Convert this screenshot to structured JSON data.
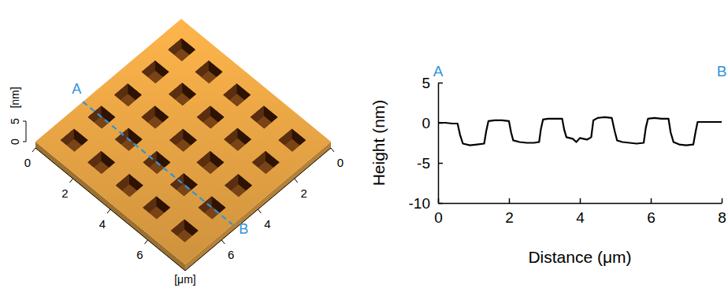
{
  "chart_data": [
    {
      "type": "surface",
      "xlabel": "[μm]",
      "zlabel": "[nm]",
      "xlim": [
        0,
        8
      ],
      "xticks": [
        0,
        2,
        4,
        6
      ],
      "ylim": [
        0,
        8
      ],
      "yticks": [
        0,
        2,
        4,
        6
      ],
      "zlim": [
        0,
        5
      ],
      "zticks": [
        0,
        5
      ],
      "color": "#d99a40",
      "hole_centers": [
        1.0,
        2.45,
        3.95,
        5.4,
        6.9
      ],
      "hole_width": 0.75,
      "hole_depth": -2.5,
      "line_style": "dashed",
      "annotations": [
        {
          "text": "A",
          "x": 0,
          "y": 5.4,
          "color": "#2f93dc"
        },
        {
          "text": "B",
          "x": 8,
          "y": 5.4,
          "color": "#2f93dc"
        }
      ]
    },
    {
      "type": "line",
      "xlabel": "Distance (μm)",
      "ylabel": "Height (nm)",
      "xlim": [
        0,
        8
      ],
      "xticks": [
        0,
        2,
        4,
        6,
        8
      ],
      "ylim": [
        -10,
        5
      ],
      "yticks": [
        -10,
        -5,
        0,
        5
      ],
      "color": "#000000",
      "x": [
        0,
        0.2,
        0.4,
        0.55,
        0.62,
        0.7,
        0.9,
        1.1,
        1.3,
        1.36,
        1.42,
        1.6,
        1.8,
        2.0,
        2.06,
        2.12,
        2.3,
        2.5,
        2.7,
        2.85,
        2.9,
        2.96,
        3.1,
        3.3,
        3.5,
        3.56,
        3.62,
        3.8,
        3.9,
        4.0,
        4.2,
        4.32,
        4.38,
        4.5,
        4.7,
        4.9,
        4.98,
        5.05,
        5.2,
        5.4,
        5.6,
        5.8,
        5.86,
        5.92,
        6.1,
        6.3,
        6.5,
        6.56,
        6.64,
        6.8,
        7.0,
        7.2,
        7.26,
        7.32,
        7.5,
        7.7,
        8.0
      ],
      "values": [
        0,
        0,
        -0.1,
        -0.1,
        -1.5,
        -2.6,
        -2.8,
        -2.7,
        -2.6,
        -1.0,
        0.2,
        0.3,
        0.3,
        0.2,
        -1.2,
        -2.2,
        -2.4,
        -2.5,
        -2.5,
        -2.4,
        -0.8,
        0.4,
        0.5,
        0.5,
        0.5,
        -0.9,
        -1.8,
        -2.0,
        -2.4,
        -1.9,
        -2.1,
        -1.8,
        0.3,
        0.6,
        0.7,
        0.6,
        -1.0,
        -2.2,
        -2.4,
        -2.5,
        -2.6,
        -2.5,
        -0.6,
        0.5,
        0.6,
        0.5,
        0.5,
        -1.2,
        -2.4,
        -2.7,
        -2.8,
        -2.7,
        -1.2,
        0.1,
        0.1,
        0.1,
        0.1
      ],
      "annotations": [
        {
          "text": "A",
          "x": 0,
          "color": "#2f93dc"
        },
        {
          "text": "B",
          "x": 8,
          "color": "#2f93dc"
        }
      ]
    }
  ]
}
